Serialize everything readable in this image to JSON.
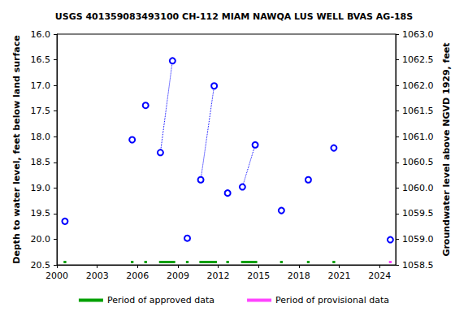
{
  "chart_data": {
    "type": "line",
    "title": "USGS 401359083493100 CH-112 MIAM NAWQA LUS WELL BVAS AG-18S",
    "y_label": "Depth to water level, feet below land surface",
    "y2_label": "Groundwater level above NGVD 1929, feet",
    "xlim": [
      2000,
      2025.2
    ],
    "xticks": [
      2000,
      2003,
      2006,
      2009,
      2012,
      2015,
      2018,
      2021,
      2024
    ],
    "ylim": [
      20.5,
      16
    ],
    "yticks": [
      {
        "value": 16,
        "label": "16.0"
      },
      {
        "value": 16.5,
        "label": "16.5"
      },
      {
        "value": 17,
        "label": "17.0"
      },
      {
        "value": 17.5,
        "label": "17.5"
      },
      {
        "value": 18,
        "label": "18.0"
      },
      {
        "value": 18.5,
        "label": "18.5"
      },
      {
        "value": 19,
        "label": "19.0"
      },
      {
        "value": 19.5,
        "label": "19.5"
      },
      {
        "value": 20,
        "label": "20.0"
      },
      {
        "value": 20.5,
        "label": "20.5"
      }
    ],
    "y2lim": [
      1058.5,
      1063
    ],
    "y2ticks": [
      {
        "value": 1058.5,
        "label": "1058.5"
      },
      {
        "value": 1059,
        "label": "1059.0"
      },
      {
        "value": 1059.5,
        "label": "1059.5"
      },
      {
        "value": 1060,
        "label": "1060.0"
      },
      {
        "value": 1060.5,
        "label": "1060.5"
      },
      {
        "value": 1061,
        "label": "1061.0"
      },
      {
        "value": 1061.5,
        "label": "1061.5"
      },
      {
        "value": 1062,
        "label": "1062.0"
      },
      {
        "value": 1062.5,
        "label": "1062.5"
      },
      {
        "value": 1063,
        "label": "1063.0"
      }
    ],
    "grid": false,
    "legend": "bottom",
    "marker": "open_circle",
    "line_style": "dotted",
    "color": "#0000ff",
    "series": [
      {
        "x": [
          2000.6
        ],
        "values": [
          19.65
        ]
      },
      {
        "x": [
          2005.6
        ],
        "values": [
          18.06
        ]
      },
      {
        "x": [
          2006.6
        ],
        "values": [
          17.39
        ]
      },
      {
        "x": [
          2007.7,
          2008.6
        ],
        "values": [
          18.31,
          16.52
        ]
      },
      {
        "x": [
          2009.7
        ],
        "values": [
          19.98
        ]
      },
      {
        "x": [
          2010.7,
          2011.7
        ],
        "values": [
          18.84,
          17.01
        ]
      },
      {
        "x": [
          2012.7
        ],
        "values": [
          19.1
        ]
      },
      {
        "x": [
          2013.8,
          2014.75
        ],
        "values": [
          18.98,
          18.16
        ]
      },
      {
        "x": [
          2016.7
        ],
        "values": [
          19.44
        ]
      },
      {
        "x": [
          2018.7
        ],
        "values": [
          18.84
        ]
      },
      {
        "x": [
          2020.6
        ],
        "values": [
          18.22
        ]
      },
      {
        "x": [
          2024.8
        ],
        "values": [
          20.01
        ]
      }
    ],
    "periods": [
      {
        "name": "Period of approved data",
        "color": "#00a000",
        "ranges": [
          [
            2000.5,
            2000.7
          ],
          [
            2005.5,
            2005.7
          ],
          [
            2006.5,
            2006.7
          ],
          [
            2007.6,
            2008.8
          ],
          [
            2009.6,
            2009.8
          ],
          [
            2010.6,
            2011.9
          ],
          [
            2012.6,
            2012.8
          ],
          [
            2013.7,
            2014.9
          ],
          [
            2016.6,
            2016.8
          ],
          [
            2018.6,
            2018.8
          ],
          [
            2020.5,
            2020.7
          ]
        ]
      },
      {
        "name": "Period of provisional data",
        "color": "#ff44ff",
        "ranges": [
          [
            2024.7,
            2024.9
          ]
        ]
      }
    ]
  }
}
